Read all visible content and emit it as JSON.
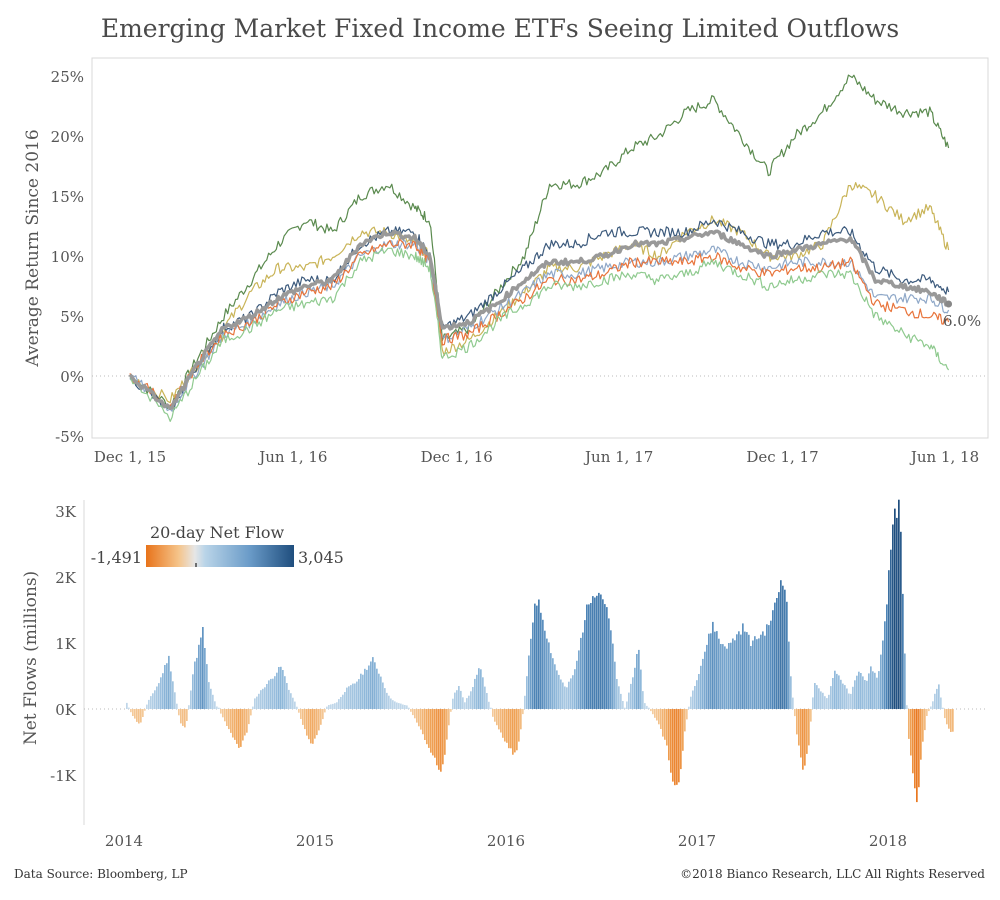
{
  "page": {
    "title": "Emerging Market Fixed Income ETFs Seeing Limited Outflows",
    "source": "Data Source: Bloomberg, LP",
    "copyright": "©2018 Bianco Research, LLC  All Rights Reserved"
  },
  "chart_data": [
    {
      "type": "line",
      "ylabel": "Average Return Since 2016",
      "ylim": [
        -5,
        25
      ],
      "ytick_labels": [
        "-5%",
        "0%",
        "5%",
        "10%",
        "15%",
        "20%",
        "25%"
      ],
      "xtick_labels": [
        "Dec 1, 15",
        "Jun 1, 16",
        "Dec 1, 16",
        "Jun 1, 17",
        "Dec 1, 17",
        "Jun 1, 18"
      ],
      "end_annotation": "6.0%",
      "x_dates": [
        "2015-12-01",
        "2016-01-15",
        "2016-02-15",
        "2016-03-15",
        "2016-04-15",
        "2016-05-15",
        "2016-06-15",
        "2016-07-15",
        "2016-08-15",
        "2016-09-15",
        "2016-10-15",
        "2016-11-01",
        "2016-11-15",
        "2016-12-15",
        "2017-01-15",
        "2017-02-15",
        "2017-03-15",
        "2017-04-15",
        "2017-05-15",
        "2017-06-15",
        "2017-07-15",
        "2017-08-15",
        "2017-09-15",
        "2017-10-15",
        "2017-11-15",
        "2017-12-15",
        "2018-01-15",
        "2018-02-15",
        "2018-03-15",
        "2018-04-15",
        "2018-05-15",
        "2018-06-05"
      ],
      "series": [
        {
          "name": "",
          "color": "#5a8a4e",
          "width": 1.2,
          "values": [
            0,
            -2.5,
            1.5,
            5,
            8,
            11,
            13,
            12,
            15,
            16,
            14,
            13,
            3,
            4,
            7,
            10,
            16,
            16,
            17,
            19,
            20,
            22,
            23,
            20,
            17,
            20,
            22,
            25,
            23,
            22,
            22,
            19
          ]
        },
        {
          "name": "",
          "color": "#c9b458",
          "width": 1.2,
          "values": [
            0,
            -2,
            1,
            4,
            7,
            9,
            9,
            10,
            12,
            12,
            11,
            10,
            2,
            3,
            5,
            7,
            9,
            9,
            10,
            11,
            10,
            12,
            13,
            12,
            10,
            10,
            11,
            16,
            15,
            13,
            14,
            10.5
          ]
        },
        {
          "name": "",
          "color": "#3c5a7c",
          "width": 1.2,
          "values": [
            0,
            -3,
            1,
            4,
            5,
            7,
            8,
            8,
            11,
            12,
            12,
            10,
            4,
            5,
            7,
            9,
            11,
            11,
            12,
            12,
            12,
            12,
            13,
            12,
            11,
            11,
            12,
            12,
            9,
            8,
            8,
            7
          ]
        },
        {
          "name": "",
          "color": "#8fa8c8",
          "width": 1.2,
          "values": [
            0,
            -2.8,
            0.5,
            3.5,
            4.5,
            6,
            7,
            7.5,
            10,
            11,
            11,
            9.5,
            3,
            4,
            5.5,
            7,
            8.5,
            8.5,
            9,
            9.5,
            9.5,
            10,
            10.5,
            9.5,
            9,
            9.5,
            9.5,
            9.5,
            6.5,
            6.5,
            6.5,
            5.5
          ]
        },
        {
          "name": "",
          "color": "#e8743b",
          "width": 1.2,
          "values": [
            0,
            -2.5,
            1,
            3.5,
            4.5,
            6,
            7,
            7.5,
            10,
            11,
            11,
            9.5,
            3,
            3.5,
            5,
            6.5,
            8,
            8,
            8.5,
            9.5,
            9.5,
            9.5,
            10,
            9,
            8.5,
            9,
            9,
            9.5,
            6,
            5.5,
            5,
            4.5
          ]
        },
        {
          "name": "",
          "color": "#8fca8f",
          "width": 1.2,
          "values": [
            0,
            -3.5,
            0,
            3,
            4,
            5.5,
            6,
            6.5,
            9.5,
            10.5,
            10,
            9,
            1.5,
            2.5,
            4.5,
            6,
            7.5,
            7.5,
            8,
            8.5,
            8,
            8.5,
            9.5,
            8.5,
            7.5,
            8,
            8.5,
            8.5,
            5,
            3.5,
            2.5,
            0.5
          ]
        },
        {
          "name": "",
          "color": "#999999",
          "width": 3.5,
          "values": [
            0,
            -2.8,
            1,
            4,
            5,
            6.5,
            7.5,
            8,
            11,
            12,
            11.5,
            10,
            4,
            4.5,
            6,
            8,
            9.5,
            9.5,
            10,
            11,
            11,
            11.5,
            12,
            11,
            10,
            10.5,
            11,
            11.5,
            8,
            7.5,
            7,
            6
          ]
        }
      ]
    },
    {
      "type": "bar",
      "ylabel": "Net Flows (millions)",
      "ylim": [
        -1.7,
        3.1
      ],
      "ytick_labels": [
        "-1K",
        "0K",
        "1K",
        "2K",
        "3K"
      ],
      "xtick_labels": [
        "2014",
        "2015",
        "2016",
        "2017",
        "2018"
      ],
      "legend": {
        "title": "20-day Net Flow",
        "min_label": "-1,491",
        "max_label": "3,045",
        "min": -1491,
        "max": 3045
      },
      "unit": "thousands of millions",
      "x_year_start": 2014.0,
      "x_year_end": 2018.35,
      "knots": [
        [
          2014.0,
          0.05
        ],
        [
          2014.03,
          0.1
        ],
        [
          2014.06,
          -0.1
        ],
        [
          2014.1,
          -0.25
        ],
        [
          2014.14,
          0.1
        ],
        [
          2014.2,
          0.4
        ],
        [
          2014.25,
          0.8
        ],
        [
          2014.28,
          0.3
        ],
        [
          2014.31,
          -0.2
        ],
        [
          2014.34,
          -0.3
        ],
        [
          2014.38,
          0.6
        ],
        [
          2014.43,
          1.2
        ],
        [
          2014.46,
          0.4
        ],
        [
          2014.5,
          0.05
        ],
        [
          2014.53,
          -0.1
        ],
        [
          2014.58,
          -0.4
        ],
        [
          2014.62,
          -0.6
        ],
        [
          2014.66,
          -0.35
        ],
        [
          2014.7,
          0.15
        ],
        [
          2014.74,
          0.3
        ],
        [
          2014.8,
          0.5
        ],
        [
          2014.84,
          0.65
        ],
        [
          2014.88,
          0.3
        ],
        [
          2014.92,
          0.05
        ],
        [
          2014.96,
          -0.3
        ],
        [
          2015.0,
          -0.55
        ],
        [
          2015.04,
          -0.3
        ],
        [
          2015.08,
          0.05
        ],
        [
          2015.13,
          0.1
        ],
        [
          2015.18,
          0.3
        ],
        [
          2015.23,
          0.4
        ],
        [
          2015.28,
          0.6
        ],
        [
          2015.32,
          0.75
        ],
        [
          2015.36,
          0.5
        ],
        [
          2015.4,
          0.2
        ],
        [
          2015.44,
          0.1
        ],
        [
          2015.5,
          0.05
        ],
        [
          2015.55,
          -0.2
        ],
        [
          2015.6,
          -0.5
        ],
        [
          2015.65,
          -0.8
        ],
        [
          2015.68,
          -1.0
        ],
        [
          2015.71,
          -0.4
        ],
        [
          2015.74,
          0.2
        ],
        [
          2015.77,
          0.35
        ],
        [
          2015.8,
          0.1
        ],
        [
          2015.84,
          0.3
        ],
        [
          2015.88,
          0.7
        ],
        [
          2015.91,
          0.3
        ],
        [
          2015.95,
          -0.15
        ],
        [
          2015.99,
          -0.35
        ],
        [
          2016.03,
          -0.6
        ],
        [
          2016.07,
          -0.7
        ],
        [
          2016.1,
          -0.2
        ],
        [
          2016.13,
          0.6
        ],
        [
          2016.17,
          1.7
        ],
        [
          2016.2,
          1.5
        ],
        [
          2016.24,
          1.0
        ],
        [
          2016.28,
          0.6
        ],
        [
          2016.33,
          0.3
        ],
        [
          2016.38,
          0.6
        ],
        [
          2016.43,
          1.4
        ],
        [
          2016.47,
          1.8
        ],
        [
          2016.52,
          1.75
        ],
        [
          2016.56,
          1.3
        ],
        [
          2016.6,
          0.4
        ],
        [
          2016.64,
          0.0
        ],
        [
          2016.68,
          0.5
        ],
        [
          2016.71,
          0.9
        ],
        [
          2016.74,
          0.1
        ],
        [
          2016.78,
          -0.05
        ],
        [
          2016.82,
          -0.25
        ],
        [
          2016.86,
          -0.6
        ],
        [
          2016.89,
          -1.1
        ],
        [
          2016.92,
          -1.2
        ],
        [
          2016.95,
          -0.4
        ],
        [
          2016.98,
          0.15
        ],
        [
          2017.02,
          0.5
        ],
        [
          2017.06,
          0.9
        ],
        [
          2017.1,
          1.3
        ],
        [
          2017.14,
          1.0
        ],
        [
          2017.18,
          0.95
        ],
        [
          2017.22,
          1.1
        ],
        [
          2017.26,
          1.25
        ],
        [
          2017.3,
          1.0
        ],
        [
          2017.34,
          1.1
        ],
        [
          2017.38,
          1.2
        ],
        [
          2017.42,
          1.5
        ],
        [
          2017.46,
          2.0
        ],
        [
          2017.48,
          1.9
        ],
        [
          2017.51,
          0.4
        ],
        [
          2017.54,
          -0.4
        ],
        [
          2017.57,
          -0.95
        ],
        [
          2017.6,
          -0.6
        ],
        [
          2017.63,
          0.4
        ],
        [
          2017.66,
          0.3
        ],
        [
          2017.7,
          0.15
        ],
        [
          2017.74,
          0.6
        ],
        [
          2017.78,
          0.4
        ],
        [
          2017.82,
          0.2
        ],
        [
          2017.86,
          0.6
        ],
        [
          2017.9,
          0.4
        ],
        [
          2017.93,
          0.65
        ],
        [
          2017.96,
          0.45
        ],
        [
          2017.99,
          1.0
        ],
        [
          2018.02,
          2.0
        ],
        [
          2018.05,
          2.9
        ],
        [
          2018.08,
          3.045
        ],
        [
          2018.1,
          1.2
        ],
        [
          2018.12,
          -0.3
        ],
        [
          2018.15,
          -1.0
        ],
        [
          2018.17,
          -1.45
        ],
        [
          2018.19,
          -0.7
        ],
        [
          2018.22,
          -0.1
        ],
        [
          2018.25,
          0.1
        ],
        [
          2018.28,
          0.4
        ],
        [
          2018.31,
          -0.1
        ],
        [
          2018.34,
          -0.35
        ]
      ]
    }
  ]
}
